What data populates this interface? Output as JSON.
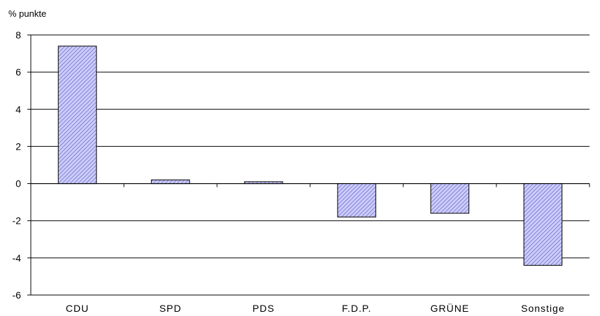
{
  "chart_data": {
    "type": "bar",
    "title": "",
    "ylabel": "% punkte",
    "xlabel": "",
    "categories": [
      "CDU",
      "SPD",
      "PDS",
      "F.D.P.",
      "GRÜNE",
      "Sonstige"
    ],
    "values": [
      7.4,
      0.2,
      0.1,
      -1.8,
      -1.6,
      -4.4
    ],
    "ylim": [
      -6,
      8
    ],
    "yticks": [
      "-6",
      "-4",
      "-2",
      "0",
      "2",
      "4",
      "6",
      "8"
    ],
    "grid": true,
    "legend": "none",
    "bar_fill": "#ccccff",
    "bar_hatch_color": "#5555aa",
    "bar_stroke": "#000000"
  }
}
